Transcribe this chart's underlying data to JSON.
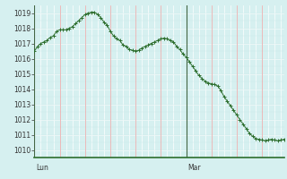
{
  "background_color": "#d6f0f0",
  "line_color": "#2d6e2d",
  "marker_color": "#2d6e2d",
  "grid_major_color": "#ffffff",
  "grid_minor_color": "#c8e8e8",
  "red_grid_color": "#e8a0a0",
  "ylim": [
    1009.5,
    1019.5
  ],
  "yticks": [
    1010,
    1011,
    1012,
    1013,
    1014,
    1015,
    1016,
    1017,
    1018,
    1019
  ],
  "day_labels": [
    "Lun",
    "Mar"
  ],
  "day_positions": [
    0,
    48
  ],
  "total_points": 80,
  "red_grid_every": 8,
  "white_grid_every": 2,
  "values": [
    1016.5,
    1016.8,
    1017.0,
    1017.1,
    1017.2,
    1017.4,
    1017.5,
    1017.8,
    1017.9,
    1017.9,
    1017.9,
    1018.0,
    1018.1,
    1018.3,
    1018.5,
    1018.7,
    1018.9,
    1019.0,
    1019.05,
    1019.05,
    1018.9,
    1018.7,
    1018.4,
    1018.2,
    1017.8,
    1017.5,
    1017.3,
    1017.2,
    1016.9,
    1016.8,
    1016.6,
    1016.55,
    1016.5,
    1016.55,
    1016.7,
    1016.8,
    1016.9,
    1017.0,
    1017.1,
    1017.2,
    1017.3,
    1017.35,
    1017.3,
    1017.2,
    1017.1,
    1016.8,
    1016.6,
    1016.3,
    1016.1,
    1015.8,
    1015.5,
    1015.2,
    1014.9,
    1014.7,
    1014.5,
    1014.4,
    1014.35,
    1014.3,
    1014.2,
    1013.9,
    1013.5,
    1013.2,
    1012.9,
    1012.6,
    1012.3,
    1012.0,
    1011.7,
    1011.4,
    1011.1,
    1010.9,
    1010.75,
    1010.7,
    1010.65,
    1010.6,
    1010.65,
    1010.7,
    1010.65,
    1010.6,
    1010.65,
    1010.7
  ]
}
